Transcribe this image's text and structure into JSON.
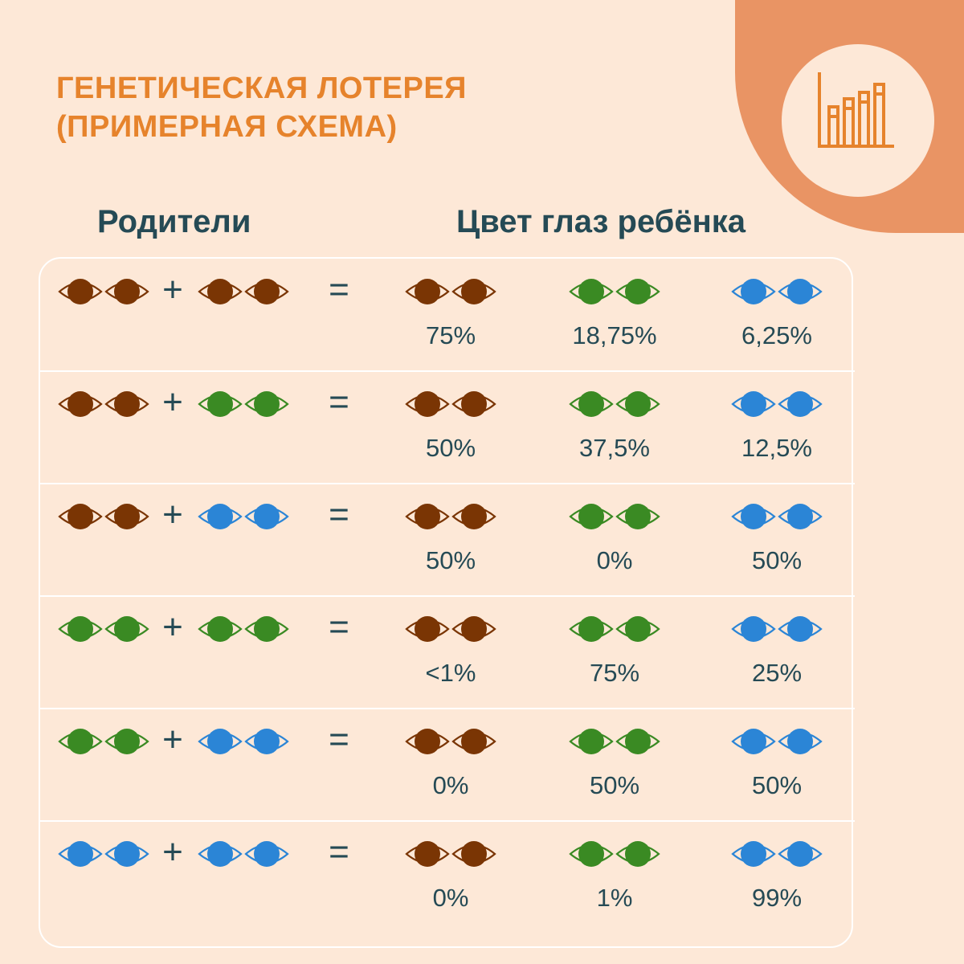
{
  "title": {
    "line1": "ГЕНЕТИЧЕСКАЯ ЛОТЕРЕЯ",
    "line2": "(ПРИМЕРНАЯ СХЕМА)"
  },
  "headers": {
    "parents": "Родители",
    "child": "Цвет глаз ребёнка"
  },
  "symbols": {
    "plus": "+",
    "equals": "="
  },
  "colors": {
    "brown": "#7a3504",
    "green": "#3a8a23",
    "blue": "#2b85d6",
    "accent": "#e6832c",
    "corner": "#e99464",
    "text": "#254a55"
  },
  "icons": {
    "logo": "bar-chart-icon",
    "eye": "eye-icon"
  },
  "rows": [
    {
      "parent1": "brown",
      "parent2": "brown",
      "brown": "75%",
      "green": "18,75%",
      "blue": "6,25%"
    },
    {
      "parent1": "brown",
      "parent2": "green",
      "brown": "50%",
      "green": "37,5%",
      "blue": "12,5%"
    },
    {
      "parent1": "brown",
      "parent2": "blue",
      "brown": "50%",
      "green": "0%",
      "blue": "50%"
    },
    {
      "parent1": "green",
      "parent2": "green",
      "brown": "<1%",
      "green": "75%",
      "blue": "25%"
    },
    {
      "parent1": "green",
      "parent2": "blue",
      "brown": "0%",
      "green": "50%",
      "blue": "50%"
    },
    {
      "parent1": "blue",
      "parent2": "blue",
      "brown": "0%",
      "green": "1%",
      "blue": "99%"
    }
  ]
}
